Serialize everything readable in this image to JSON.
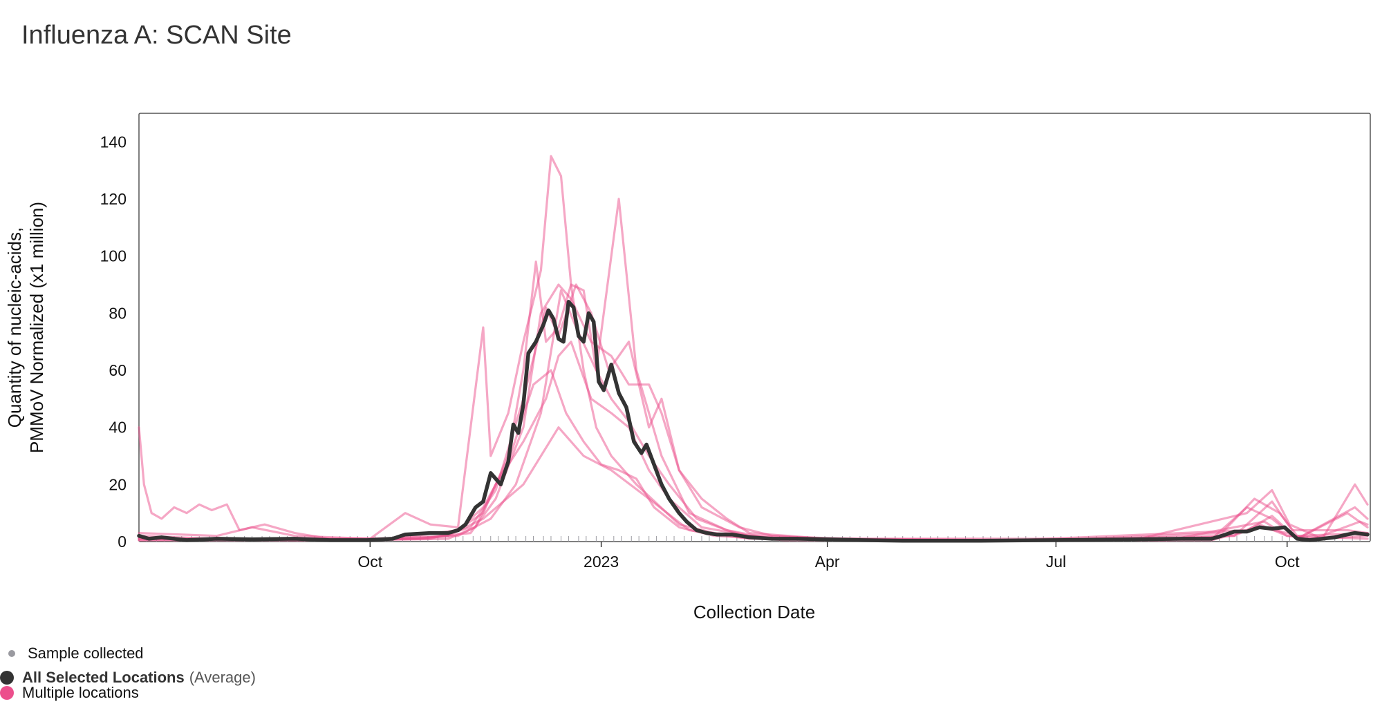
{
  "page": {
    "title": "Influenza A: SCAN Site"
  },
  "legend": {
    "sample_label": "Sample collected",
    "average_label": "All Selected Locations",
    "average_suffix": "(Average)",
    "multi_label": "Multiple locations",
    "sample_color": "#9a9aa0",
    "average_color": "#333333",
    "multi_color": "#ec4f8c"
  },
  "chart_data": {
    "type": "line",
    "xlabel": "Collection Date",
    "ylabel_lines": [
      "Quantity of nucleic-acids,",
      "PMMoV Normalized (x1 million)"
    ],
    "x_start": "2022-07-01",
    "x_end": "2023-11-02",
    "ylim": [
      0,
      150
    ],
    "yticks": [
      0,
      20,
      40,
      60,
      80,
      100,
      120,
      140
    ],
    "xticks": [
      {
        "label": "Oct",
        "date": "2022-10-01"
      },
      {
        "label": "2023",
        "date": "2023-01-01"
      },
      {
        "label": "Apr",
        "date": "2023-04-01"
      },
      {
        "label": "Jul",
        "date": "2023-07-01"
      },
      {
        "label": "Oct",
        "date": "2023-10-01"
      }
    ],
    "grid": false,
    "average": {
      "name": "All Selected Locations",
      "color": "#333333",
      "points": [
        [
          "2022-07-01",
          2
        ],
        [
          "2022-07-05",
          1
        ],
        [
          "2022-07-10",
          1.5
        ],
        [
          "2022-07-20",
          0.5
        ],
        [
          "2022-08-01",
          1
        ],
        [
          "2022-08-15",
          0.8
        ],
        [
          "2022-09-01",
          1
        ],
        [
          "2022-09-15",
          0.5
        ],
        [
          "2022-09-30",
          0.5
        ],
        [
          "2022-10-10",
          1
        ],
        [
          "2022-10-15",
          2.5
        ],
        [
          "2022-10-25",
          3
        ],
        [
          "2022-11-01",
          3
        ],
        [
          "2022-11-05",
          4
        ],
        [
          "2022-11-08",
          6
        ],
        [
          "2022-11-12",
          12
        ],
        [
          "2022-11-15",
          14
        ],
        [
          "2022-11-18",
          24
        ],
        [
          "2022-11-22",
          20
        ],
        [
          "2022-11-25",
          28
        ],
        [
          "2022-11-27",
          41
        ],
        [
          "2022-11-29",
          38
        ],
        [
          "2022-12-01",
          48
        ],
        [
          "2022-12-03",
          66
        ],
        [
          "2022-12-06",
          70
        ],
        [
          "2022-12-09",
          76
        ],
        [
          "2022-12-11",
          81
        ],
        [
          "2022-12-13",
          78
        ],
        [
          "2022-12-15",
          71
        ],
        [
          "2022-12-17",
          70
        ],
        [
          "2022-12-19",
          84
        ],
        [
          "2022-12-21",
          82
        ],
        [
          "2022-12-23",
          72
        ],
        [
          "2022-12-25",
          70
        ],
        [
          "2022-12-27",
          80
        ],
        [
          "2022-12-29",
          77
        ],
        [
          "2022-12-31",
          56
        ],
        [
          "2023-01-02",
          53
        ],
        [
          "2023-01-05",
          62
        ],
        [
          "2023-01-08",
          52
        ],
        [
          "2023-01-11",
          47
        ],
        [
          "2023-01-14",
          35
        ],
        [
          "2023-01-17",
          31
        ],
        [
          "2023-01-19",
          34
        ],
        [
          "2023-01-22",
          27
        ],
        [
          "2023-01-25",
          20
        ],
        [
          "2023-01-28",
          15
        ],
        [
          "2023-02-01",
          10
        ],
        [
          "2023-02-04",
          7
        ],
        [
          "2023-02-08",
          4
        ],
        [
          "2023-02-12",
          3
        ],
        [
          "2023-02-16",
          2.5
        ],
        [
          "2023-02-22",
          2.5
        ],
        [
          "2023-03-01",
          1.5
        ],
        [
          "2023-03-10",
          1
        ],
        [
          "2023-03-20",
          1
        ],
        [
          "2023-04-01",
          0.8
        ],
        [
          "2023-04-15",
          0.5
        ],
        [
          "2023-05-01",
          0.3
        ],
        [
          "2023-06-01",
          0.3
        ],
        [
          "2023-07-01",
          0.5
        ],
        [
          "2023-08-01",
          0.8
        ],
        [
          "2023-08-20",
          1
        ],
        [
          "2023-09-01",
          1
        ],
        [
          "2023-09-05",
          2
        ],
        [
          "2023-09-10",
          3.5
        ],
        [
          "2023-09-15",
          3.5
        ],
        [
          "2023-09-20",
          5
        ],
        [
          "2023-09-25",
          4.5
        ],
        [
          "2023-09-30",
          5
        ],
        [
          "2023-10-05",
          1
        ],
        [
          "2023-10-10",
          0.5
        ],
        [
          "2023-10-15",
          1
        ],
        [
          "2023-10-20",
          1.5
        ],
        [
          "2023-10-25",
          2.5
        ],
        [
          "2023-10-28",
          3
        ],
        [
          "2023-11-02",
          2.5
        ]
      ]
    },
    "series": [
      {
        "color": "#ec4f8c",
        "points": [
          [
            "2022-07-01",
            40
          ],
          [
            "2022-07-03",
            20
          ],
          [
            "2022-07-06",
            10
          ],
          [
            "2022-07-10",
            8
          ],
          [
            "2022-07-15",
            12
          ],
          [
            "2022-07-20",
            10
          ],
          [
            "2022-07-25",
            13
          ],
          [
            "2022-07-30",
            11
          ],
          [
            "2022-08-05",
            13
          ],
          [
            "2022-08-10",
            4
          ],
          [
            "2022-08-20",
            6
          ],
          [
            "2022-09-01",
            3
          ],
          [
            "2022-09-15",
            1
          ],
          [
            "2022-10-01",
            1
          ],
          [
            "2022-10-20",
            1
          ],
          [
            "2022-11-01",
            2
          ],
          [
            "2022-11-15",
            8
          ],
          [
            "2022-12-01",
            20
          ],
          [
            "2022-12-15",
            40
          ],
          [
            "2022-12-25",
            30
          ],
          [
            "2023-01-05",
            25
          ],
          [
            "2023-01-20",
            15
          ],
          [
            "2023-02-05",
            4
          ],
          [
            "2023-03-01",
            1
          ],
          [
            "2023-05-01",
            0.5
          ],
          [
            "2023-08-01",
            0.5
          ],
          [
            "2023-09-10",
            2
          ],
          [
            "2023-09-20",
            6
          ],
          [
            "2023-10-01",
            2
          ],
          [
            "2023-10-15",
            1
          ],
          [
            "2023-11-02",
            2
          ]
        ]
      },
      {
        "color": "#ec4f8c",
        "points": [
          [
            "2022-07-01",
            3
          ],
          [
            "2022-08-01",
            2
          ],
          [
            "2022-08-15",
            5
          ],
          [
            "2022-09-01",
            2
          ],
          [
            "2022-10-01",
            1
          ],
          [
            "2022-10-15",
            10
          ],
          [
            "2022-10-25",
            6
          ],
          [
            "2022-11-05",
            5
          ],
          [
            "2022-11-15",
            75
          ],
          [
            "2022-11-18",
            30
          ],
          [
            "2022-11-25",
            45
          ],
          [
            "2022-12-01",
            70
          ],
          [
            "2022-12-08",
            95
          ],
          [
            "2022-12-12",
            135
          ],
          [
            "2022-12-16",
            128
          ],
          [
            "2022-12-20",
            90
          ],
          [
            "2022-12-25",
            60
          ],
          [
            "2022-12-30",
            40
          ],
          [
            "2023-01-05",
            30
          ],
          [
            "2023-01-15",
            20
          ],
          [
            "2023-02-01",
            6
          ],
          [
            "2023-02-15",
            3
          ],
          [
            "2023-03-15",
            1
          ],
          [
            "2023-05-01",
            0.5
          ],
          [
            "2023-08-01",
            0.5
          ],
          [
            "2023-09-15",
            10
          ],
          [
            "2023-09-25",
            18
          ],
          [
            "2023-10-02",
            6
          ],
          [
            "2023-10-15",
            1
          ],
          [
            "2023-10-28",
            20
          ],
          [
            "2023-11-02",
            13
          ]
        ]
      },
      {
        "color": "#ec4f8c",
        "points": [
          [
            "2022-07-01",
            1
          ],
          [
            "2022-09-01",
            1
          ],
          [
            "2022-10-15",
            1
          ],
          [
            "2022-11-01",
            2
          ],
          [
            "2022-11-15",
            10
          ],
          [
            "2022-11-25",
            30
          ],
          [
            "2022-12-01",
            60
          ],
          [
            "2022-12-06",
            98
          ],
          [
            "2022-12-10",
            70
          ],
          [
            "2022-12-15",
            75
          ],
          [
            "2022-12-20",
            90
          ],
          [
            "2022-12-25",
            88
          ],
          [
            "2022-12-30",
            60
          ],
          [
            "2023-01-08",
            120
          ],
          [
            "2023-01-15",
            60
          ],
          [
            "2023-01-25",
            30
          ],
          [
            "2023-02-05",
            10
          ],
          [
            "2023-02-20",
            4
          ],
          [
            "2023-03-10",
            1
          ],
          [
            "2023-06-01",
            0.5
          ],
          [
            "2023-09-01",
            1
          ],
          [
            "2023-09-15",
            12
          ],
          [
            "2023-09-25",
            8
          ],
          [
            "2023-10-05",
            1
          ],
          [
            "2023-10-25",
            10
          ],
          [
            "2023-11-02",
            5
          ]
        ]
      },
      {
        "color": "#ec4f8c",
        "points": [
          [
            "2022-07-01",
            1
          ],
          [
            "2022-09-15",
            0.5
          ],
          [
            "2022-10-20",
            1
          ],
          [
            "2022-11-10",
            3
          ],
          [
            "2022-11-20",
            15
          ],
          [
            "2022-12-01",
            40
          ],
          [
            "2022-12-08",
            80
          ],
          [
            "2022-12-15",
            90
          ],
          [
            "2022-12-20",
            85
          ],
          [
            "2022-12-28",
            70
          ],
          [
            "2023-01-05",
            65
          ],
          [
            "2023-01-12",
            55
          ],
          [
            "2023-01-20",
            55
          ],
          [
            "2023-01-25",
            45
          ],
          [
            "2023-02-01",
            25
          ],
          [
            "2023-02-10",
            15
          ],
          [
            "2023-02-20",
            8
          ],
          [
            "2023-03-01",
            3
          ],
          [
            "2023-04-01",
            1
          ],
          [
            "2023-07-01",
            0.5
          ],
          [
            "2023-09-05",
            3
          ],
          [
            "2023-09-18",
            15
          ],
          [
            "2023-09-28",
            10
          ],
          [
            "2023-10-05",
            2
          ],
          [
            "2023-11-02",
            3
          ]
        ]
      },
      {
        "color": "#ec4f8c",
        "points": [
          [
            "2022-07-01",
            0.5
          ],
          [
            "2022-10-01",
            0.5
          ],
          [
            "2022-11-01",
            1
          ],
          [
            "2022-11-12",
            5
          ],
          [
            "2022-11-20",
            20
          ],
          [
            "2022-12-01",
            35
          ],
          [
            "2022-12-10",
            50
          ],
          [
            "2022-12-15",
            65
          ],
          [
            "2022-12-20",
            70
          ],
          [
            "2022-12-28",
            50
          ],
          [
            "2023-01-05",
            45
          ],
          [
            "2023-01-12",
            40
          ],
          [
            "2023-01-20",
            25
          ],
          [
            "2023-01-28",
            15
          ],
          [
            "2023-02-10",
            5
          ],
          [
            "2023-03-01",
            2
          ],
          [
            "2023-05-01",
            0.5
          ],
          [
            "2023-09-01",
            0.5
          ],
          [
            "2023-09-20",
            5
          ],
          [
            "2023-10-01",
            3
          ],
          [
            "2023-10-10",
            0.5
          ],
          [
            "2023-10-30",
            7
          ],
          [
            "2023-11-02",
            6
          ]
        ]
      },
      {
        "color": "#ec4f8c",
        "points": [
          [
            "2022-07-01",
            0.5
          ],
          [
            "2022-10-10",
            1
          ],
          [
            "2022-11-05",
            4
          ],
          [
            "2022-11-15",
            12
          ],
          [
            "2022-11-25",
            28
          ],
          [
            "2022-12-05",
            55
          ],
          [
            "2022-12-12",
            60
          ],
          [
            "2022-12-18",
            45
          ],
          [
            "2022-12-25",
            35
          ],
          [
            "2023-01-01",
            27
          ],
          [
            "2023-01-08",
            25
          ],
          [
            "2023-01-15",
            22
          ],
          [
            "2023-01-22",
            12
          ],
          [
            "2023-02-01",
            5
          ],
          [
            "2023-02-15",
            2
          ],
          [
            "2023-03-15",
            0.5
          ],
          [
            "2023-08-15",
            0.5
          ],
          [
            "2023-09-10",
            5
          ],
          [
            "2023-09-22",
            7
          ],
          [
            "2023-10-01",
            2
          ],
          [
            "2023-11-02",
            1
          ]
        ]
      },
      {
        "color": "#ec4f8c",
        "points": [
          [
            "2022-07-01",
            2
          ],
          [
            "2022-08-01",
            1
          ],
          [
            "2022-09-01",
            0.5
          ],
          [
            "2022-10-25",
            1
          ],
          [
            "2022-11-10",
            5
          ],
          [
            "2022-11-20",
            18
          ],
          [
            "2022-12-01",
            50
          ],
          [
            "2022-12-10",
            82
          ],
          [
            "2022-12-15",
            72
          ],
          [
            "2022-12-22",
            90
          ],
          [
            "2022-12-28",
            80
          ],
          [
            "2023-01-04",
            60
          ],
          [
            "2023-01-12",
            70
          ],
          [
            "2023-01-20",
            40
          ],
          [
            "2023-01-25",
            50
          ],
          [
            "2023-02-01",
            25
          ],
          [
            "2023-02-10",
            12
          ],
          [
            "2023-02-25",
            5
          ],
          [
            "2023-03-10",
            2
          ],
          [
            "2023-04-01",
            1
          ],
          [
            "2023-07-15",
            1
          ],
          [
            "2023-09-10",
            2
          ],
          [
            "2023-09-25",
            14
          ],
          [
            "2023-10-03",
            4
          ],
          [
            "2023-10-25",
            4
          ],
          [
            "2023-11-02",
            3
          ]
        ]
      },
      {
        "color": "#ec4f8c",
        "points": [
          [
            "2022-07-01",
            1
          ],
          [
            "2022-10-01",
            1
          ],
          [
            "2022-11-05",
            2
          ],
          [
            "2022-11-18",
            8
          ],
          [
            "2022-11-28",
            20
          ],
          [
            "2022-12-08",
            45
          ],
          [
            "2022-12-16",
            88
          ],
          [
            "2022-12-22",
            75
          ],
          [
            "2022-12-30",
            60
          ],
          [
            "2023-01-05",
            50
          ],
          [
            "2023-01-12",
            42
          ],
          [
            "2023-01-20",
            30
          ],
          [
            "2023-01-28",
            20
          ],
          [
            "2023-02-08",
            8
          ],
          [
            "2023-02-20",
            4
          ],
          [
            "2023-03-05",
            1
          ],
          [
            "2023-06-15",
            0.5
          ],
          [
            "2023-09-15",
            4
          ],
          [
            "2023-09-25",
            9
          ],
          [
            "2023-10-05",
            1
          ],
          [
            "2023-10-28",
            12
          ],
          [
            "2023-11-02",
            8
          ]
        ]
      }
    ]
  }
}
